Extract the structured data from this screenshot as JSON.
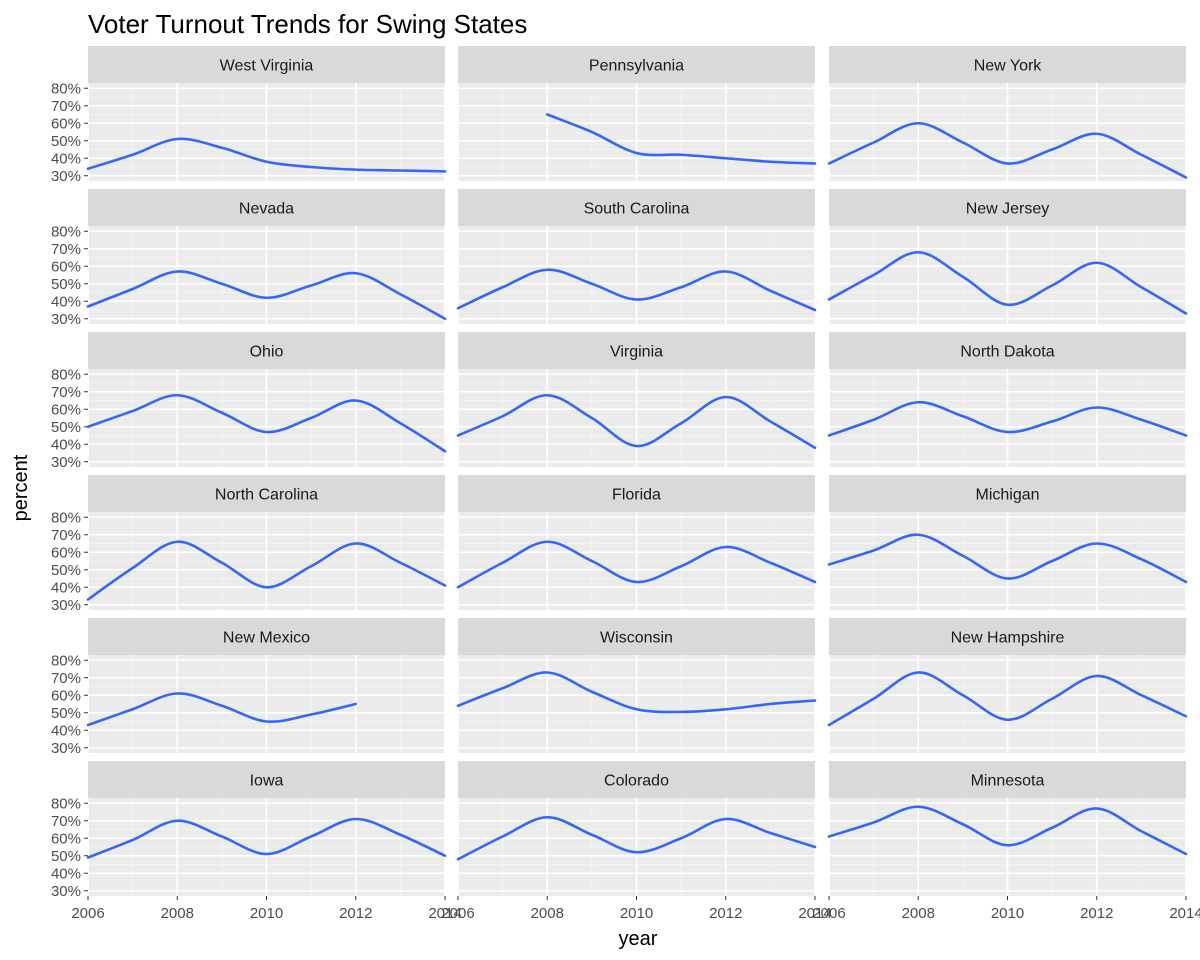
{
  "chart_data": {
    "type": "line",
    "title": "Voter Turnout Trends for Swing States",
    "xlabel": "year",
    "ylabel": "percent",
    "xlim": [
      2006,
      2014
    ],
    "ylim": [
      30,
      80
    ],
    "x_ticks": [
      2006,
      2008,
      2010,
      2012,
      2014
    ],
    "y_ticks": [
      30,
      40,
      50,
      60,
      70,
      80
    ],
    "y_tick_labels": [
      "30%",
      "40%",
      "50%",
      "60%",
      "70%",
      "80%"
    ],
    "facet_layout": "wrap, 3 columns",
    "grid": true,
    "line_color": "#3366FF",
    "panel_background": "#EBEBEB",
    "strip_background": "#D9D9D9",
    "panels": [
      {
        "name": "West Virginia",
        "x": [
          2006,
          2007,
          2008,
          2009,
          2010,
          2011,
          2012,
          2013,
          2014
        ],
        "y": [
          34,
          42,
          51,
          46,
          38,
          35,
          33.5,
          33,
          32.5
        ]
      },
      {
        "name": "Pennsylvania",
        "x": [
          2008,
          2009,
          2010,
          2011,
          2012,
          2013,
          2014
        ],
        "y": [
          65,
          55,
          43,
          42,
          40,
          38,
          37
        ]
      },
      {
        "name": "New York",
        "x": [
          2006,
          2007,
          2008,
          2009,
          2010,
          2011,
          2012,
          2013,
          2014
        ],
        "y": [
          37,
          49,
          60,
          49,
          37,
          45,
          54,
          42,
          29
        ]
      },
      {
        "name": "Nevada",
        "x": [
          2006,
          2007,
          2008,
          2009,
          2010,
          2011,
          2012,
          2013,
          2014
        ],
        "y": [
          37,
          47,
          57,
          50,
          42,
          49,
          56,
          44,
          30
        ]
      },
      {
        "name": "South Carolina",
        "x": [
          2006,
          2007,
          2008,
          2009,
          2010,
          2011,
          2012,
          2013,
          2014
        ],
        "y": [
          36,
          48,
          58,
          50,
          41,
          48,
          57,
          46,
          35
        ]
      },
      {
        "name": "New Jersey",
        "x": [
          2006,
          2007,
          2008,
          2009,
          2010,
          2011,
          2012,
          2013,
          2014
        ],
        "y": [
          41,
          55,
          68,
          54,
          38,
          49,
          62,
          48,
          33
        ]
      },
      {
        "name": "Ohio",
        "x": [
          2006,
          2007,
          2008,
          2009,
          2010,
          2011,
          2012,
          2013,
          2014
        ],
        "y": [
          50,
          59,
          68,
          58,
          47,
          55,
          65,
          52,
          36
        ]
      },
      {
        "name": "Virginia",
        "x": [
          2006,
          2007,
          2008,
          2009,
          2010,
          2011,
          2012,
          2013,
          2014
        ],
        "y": [
          45,
          56,
          68,
          55,
          39,
          52,
          67,
          53,
          38
        ]
      },
      {
        "name": "North Dakota",
        "x": [
          2006,
          2007,
          2008,
          2009,
          2010,
          2011,
          2012,
          2013,
          2014
        ],
        "y": [
          45,
          54,
          64,
          56,
          47,
          53,
          61,
          54,
          45
        ]
      },
      {
        "name": "North Carolina",
        "x": [
          2006,
          2007,
          2008,
          2009,
          2010,
          2011,
          2012,
          2013,
          2014
        ],
        "y": [
          33,
          51,
          66,
          54,
          40,
          52,
          65,
          54,
          41
        ]
      },
      {
        "name": "Florida",
        "x": [
          2006,
          2007,
          2008,
          2009,
          2010,
          2011,
          2012,
          2013,
          2014
        ],
        "y": [
          40,
          54,
          66,
          55,
          43,
          52,
          63,
          54,
          43
        ]
      },
      {
        "name": "Michigan",
        "x": [
          2006,
          2007,
          2008,
          2009,
          2010,
          2011,
          2012,
          2013,
          2014
        ],
        "y": [
          53,
          61,
          70,
          58,
          45,
          55,
          65,
          56,
          43
        ]
      },
      {
        "name": "New Mexico",
        "x": [
          2006,
          2007,
          2008,
          2009,
          2010,
          2011,
          2012
        ],
        "y": [
          43,
          52,
          61,
          54,
          45,
          49,
          55
        ]
      },
      {
        "name": "Wisconsin",
        "x": [
          2006,
          2007,
          2008,
          2009,
          2010,
          2011,
          2012,
          2013,
          2014
        ],
        "y": [
          54,
          64,
          73,
          62,
          52,
          50.5,
          52,
          55,
          57
        ]
      },
      {
        "name": "New Hampshire",
        "x": [
          2006,
          2007,
          2008,
          2009,
          2010,
          2011,
          2012,
          2013,
          2014
        ],
        "y": [
          43,
          58,
          73,
          60,
          46,
          58,
          71,
          60,
          48
        ]
      },
      {
        "name": "Iowa",
        "x": [
          2006,
          2007,
          2008,
          2009,
          2010,
          2011,
          2012,
          2013,
          2014
        ],
        "y": [
          49,
          59,
          70,
          61,
          51,
          61,
          71,
          62,
          50
        ]
      },
      {
        "name": "Colorado",
        "x": [
          2006,
          2007,
          2008,
          2009,
          2010,
          2011,
          2012,
          2013,
          2014
        ],
        "y": [
          48,
          61,
          72,
          62,
          52,
          60,
          71,
          63,
          55
        ]
      },
      {
        "name": "Minnesota",
        "x": [
          2006,
          2007,
          2008,
          2009,
          2010,
          2011,
          2012,
          2013,
          2014
        ],
        "y": [
          61,
          69,
          78,
          68,
          56,
          66,
          77,
          64,
          51
        ]
      }
    ]
  }
}
